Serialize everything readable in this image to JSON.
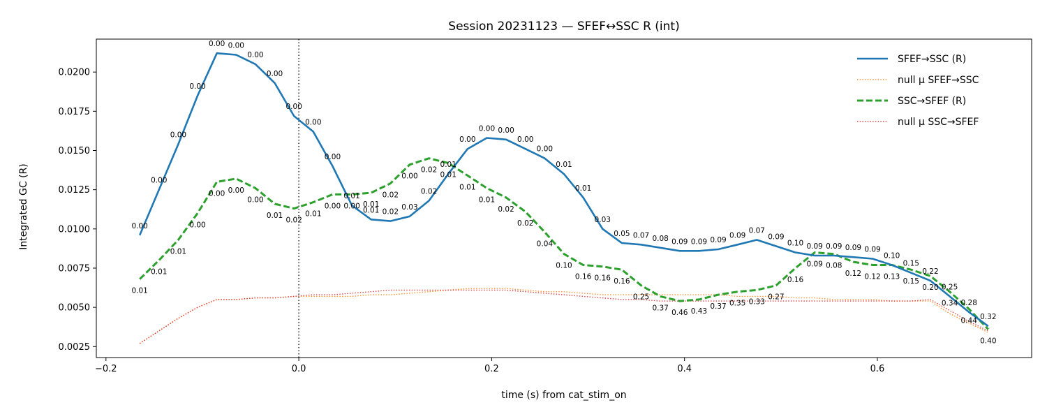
{
  "chart_data": {
    "type": "line",
    "title": "Session 20231123 — SFEF↔SSC R (int)",
    "xlabel": "time (s) from cat_stim_on",
    "ylabel": "Integrated GC (R)",
    "xlim": [
      -0.21,
      0.76
    ],
    "ylim": [
      0.0018,
      0.0221
    ],
    "x_ticks": [
      -0.2,
      0.0,
      0.2,
      0.4,
      0.6
    ],
    "x_tick_labels": [
      "−0.2",
      "0.0",
      "0.2",
      "0.4",
      "0.6"
    ],
    "y_ticks": [
      0.0025,
      0.005,
      0.0075,
      0.01,
      0.0125,
      0.015,
      0.0175,
      0.02
    ],
    "y_tick_labels": [
      "0.0025",
      "0.0050",
      "0.0075",
      "0.0100",
      "0.0125",
      "0.0150",
      "0.0175",
      "0.0200"
    ],
    "vline_x": 0.0,
    "grid": false,
    "legend_position": "top-right",
    "x": [
      -0.165,
      -0.145,
      -0.125,
      -0.105,
      -0.085,
      -0.065,
      -0.045,
      -0.025,
      -0.005,
      0.015,
      0.035,
      0.055,
      0.075,
      0.095,
      0.115,
      0.135,
      0.155,
      0.175,
      0.195,
      0.215,
      0.235,
      0.255,
      0.275,
      0.295,
      0.315,
      0.335,
      0.355,
      0.375,
      0.395,
      0.415,
      0.435,
      0.455,
      0.475,
      0.495,
      0.515,
      0.535,
      0.555,
      0.575,
      0.595,
      0.615,
      0.635,
      0.655,
      0.675,
      0.695,
      0.715
    ],
    "series": [
      {
        "name": "SFEF→SSC (R)",
        "color": "#1f77b4",
        "style": "solid",
        "values": [
          0.0096,
          0.0125,
          0.0154,
          0.0185,
          0.0212,
          0.0211,
          0.0205,
          0.0193,
          0.0172,
          0.0162,
          0.014,
          0.0115,
          0.0106,
          0.0105,
          0.0108,
          0.0118,
          0.0135,
          0.0151,
          0.0158,
          0.0157,
          0.0151,
          0.0145,
          0.0135,
          0.012,
          0.01,
          0.0091,
          0.009,
          0.0088,
          0.0086,
          0.0086,
          0.0087,
          0.009,
          0.0093,
          0.0089,
          0.0085,
          0.0083,
          0.0083,
          0.0082,
          0.0081,
          0.0077,
          0.0072,
          0.0067,
          0.0057,
          0.0047,
          0.0038
        ],
        "labels": [
          "0.00",
          "0.00",
          "0.00",
          "0.00",
          "0.00",
          "0.00",
          "0.00",
          "0.00",
          "0.00",
          "0.00",
          "0.00",
          "0.01",
          "0.01",
          "0.02",
          "0.03",
          "0.02",
          "0.01",
          "0.00",
          "0.00",
          "0.00",
          "0.00",
          "0.00",
          "0.01",
          "0.01",
          "0.03",
          "0.05",
          "0.07",
          "0.08",
          "0.09",
          "0.09",
          "0.09",
          "0.09",
          "0.07",
          "0.09",
          "0.10",
          "0.09",
          "0.09",
          "0.09",
          "0.09",
          "0.10",
          "0.15",
          "0.22",
          "0.25",
          "0.28",
          "0.32"
        ]
      },
      {
        "name": "null μ SFEF→SSC",
        "color": "#ff7f0e",
        "style": "dotted",
        "values": [
          0.0027,
          0.0035,
          0.0043,
          0.005,
          0.0055,
          0.0055,
          0.0056,
          0.0056,
          0.0057,
          0.0057,
          0.0057,
          0.0057,
          0.0058,
          0.0058,
          0.0059,
          0.006,
          0.0061,
          0.0062,
          0.0062,
          0.0062,
          0.0061,
          0.006,
          0.006,
          0.0059,
          0.0058,
          0.0058,
          0.0058,
          0.0058,
          0.0058,
          0.0058,
          0.0058,
          0.0057,
          0.0057,
          0.0057,
          0.0056,
          0.0056,
          0.0055,
          0.0055,
          0.0055,
          0.0054,
          0.0054,
          0.0054,
          0.0046,
          0.004,
          0.0034
        ]
      },
      {
        "name": "SSC→SFEF (R)",
        "color": "#2ca02c",
        "style": "dashed",
        "values": [
          0.0068,
          0.008,
          0.0093,
          0.011,
          0.013,
          0.0132,
          0.0126,
          0.0116,
          0.0113,
          0.0117,
          0.0122,
          0.0122,
          0.0123,
          0.0129,
          0.0141,
          0.0145,
          0.0142,
          0.0134,
          0.0126,
          0.012,
          0.0111,
          0.0098,
          0.0084,
          0.0077,
          0.0076,
          0.0074,
          0.0064,
          0.0057,
          0.0054,
          0.0055,
          0.0058,
          0.006,
          0.0061,
          0.0064,
          0.0075,
          0.0085,
          0.0084,
          0.0079,
          0.0077,
          0.0077,
          0.0074,
          0.007,
          0.006,
          0.0049,
          0.0036
        ],
        "labels": [
          "0.01",
          "0.01",
          "0.01",
          "0.00",
          "0.00",
          "0.00",
          "0.00",
          "0.01",
          "0.02",
          "0.01",
          "0.00",
          "0.00",
          "0.01",
          "0.02",
          "0.00",
          "0.02",
          "0.01",
          "0.01",
          "0.01",
          "0.02",
          "0.02",
          "0.04",
          "0.10",
          "0.16",
          "0.16",
          "0.16",
          "0.25",
          "0.37",
          "0.46",
          "0.43",
          "0.37",
          "0.35",
          "0.33",
          "0.27",
          "0.16",
          "0.09",
          "0.08",
          "0.12",
          "0.12",
          "0.13",
          "0.15",
          "0.20",
          "0.34",
          "0.44",
          "0.40"
        ]
      },
      {
        "name": "null μ SSC→SFEF",
        "color": "#d62728",
        "style": "dotted",
        "values": [
          0.0027,
          0.0035,
          0.0043,
          0.005,
          0.0055,
          0.0055,
          0.0056,
          0.0056,
          0.0057,
          0.0058,
          0.0058,
          0.0059,
          0.006,
          0.0061,
          0.0061,
          0.0061,
          0.0061,
          0.0061,
          0.0061,
          0.0061,
          0.006,
          0.0059,
          0.0058,
          0.0057,
          0.0056,
          0.0055,
          0.0055,
          0.0054,
          0.0054,
          0.0054,
          0.0054,
          0.0054,
          0.0054,
          0.0054,
          0.0054,
          0.0054,
          0.0054,
          0.0054,
          0.0054,
          0.0054,
          0.0054,
          0.0055,
          0.0048,
          0.0041,
          0.0035
        ]
      }
    ]
  }
}
